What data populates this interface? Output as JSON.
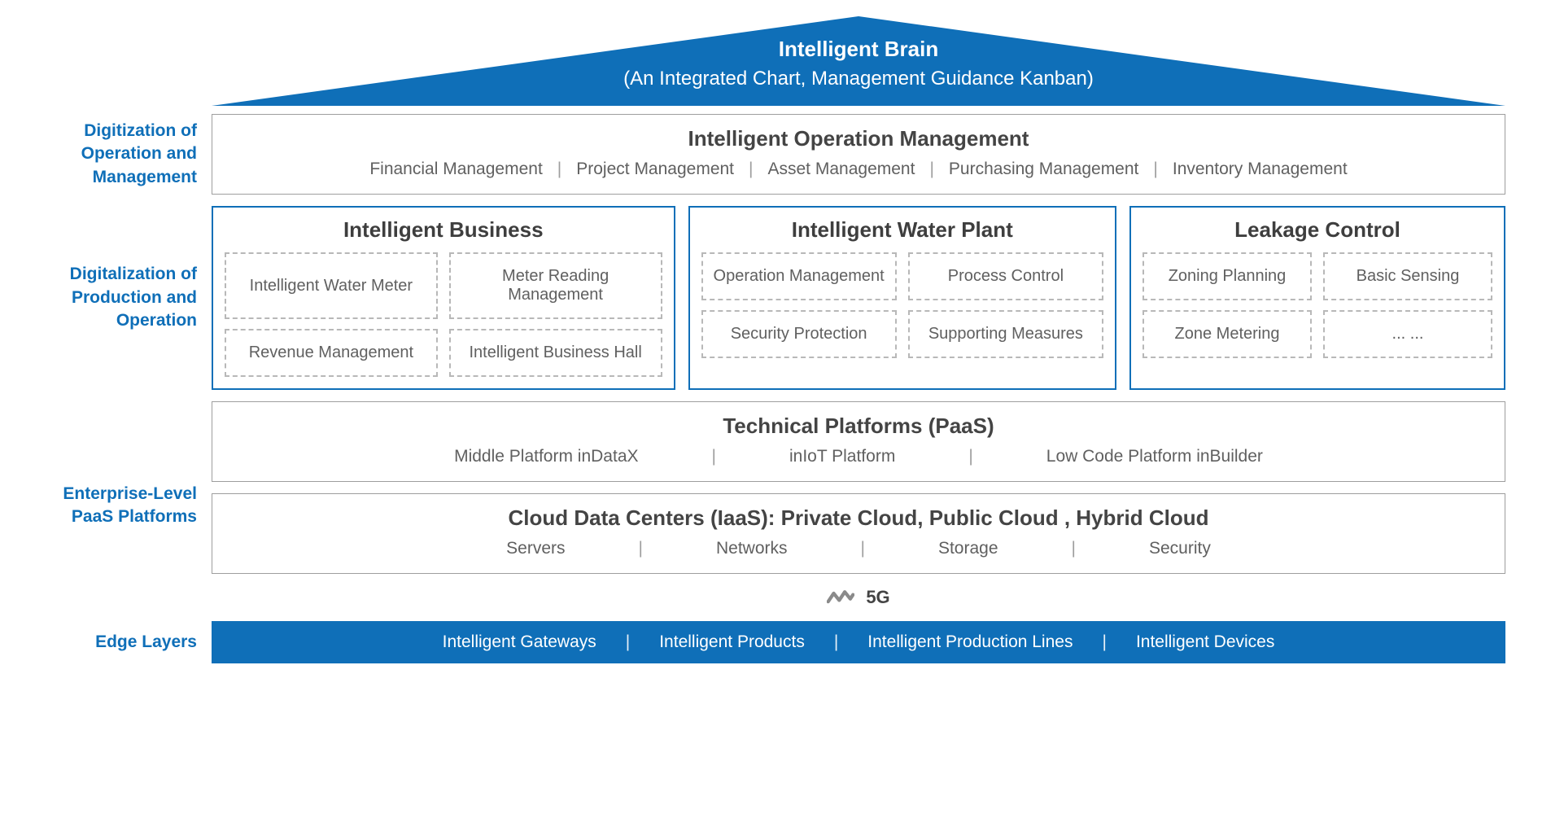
{
  "colors": {
    "brand_blue": "#0f6fb8",
    "text_dark": "#444444",
    "text_muted": "#606060",
    "border_gray": "#9e9e9e",
    "border_dash": "#b8b8b8",
    "background": "#ffffff",
    "fiveg_icon": "#8a8a8a"
  },
  "roof": {
    "title": "Intelligent Brain",
    "subtitle": "(An Integrated Chart, Management Guidance Kanban)"
  },
  "layers": [
    {
      "side_label": "Digitization of Operation and Management",
      "side_color": "#0f6fb8",
      "panels": [
        {
          "style": "gray",
          "title": "Intelligent Operation Management",
          "items": [
            "Financial Management",
            "Project Management",
            "Asset Management",
            "Purchasing Management",
            "Inventory Management"
          ]
        }
      ]
    },
    {
      "side_label": "Digitalization of Production and Operation",
      "side_color": "#0f6fb8",
      "columns": [
        {
          "flex": 1.25,
          "title": "Intelligent Business",
          "cells": [
            "Intelligent Water Meter",
            "Meter Reading Management",
            "Revenue Management",
            "Intelligent Business Hall"
          ]
        },
        {
          "flex": 1.15,
          "title": "Intelligent Water Plant",
          "cells": [
            "Operation Management",
            "Process Control",
            "Security Protection",
            "Supporting Measures"
          ]
        },
        {
          "flex": 1.0,
          "title": "Leakage Control",
          "cells": [
            "Zoning Planning",
            "Basic Sensing",
            "Zone Metering",
            "... ..."
          ]
        }
      ]
    },
    {
      "side_label": "Enterprise-Level PaaS Platforms",
      "side_color": "#0f6fb8",
      "panels": [
        {
          "style": "gray",
          "title": "Technical Platforms (PaaS)",
          "items": [
            "Middle Platform inDataX",
            "inIoT Platform",
            "Low Code Platform inBuilder"
          ]
        },
        {
          "style": "gray",
          "title": "Cloud Data Centers (IaaS): Private Cloud, Public Cloud , Hybrid Cloud",
          "items": [
            "Servers",
            "Networks",
            "Storage",
            "Security"
          ]
        }
      ],
      "fiveg_label": "5G"
    },
    {
      "side_label": "Edge Layers",
      "side_color": "#0f6fb8",
      "edge_items": [
        "Intelligent Gateways",
        "Intelligent Products",
        "Intelligent Production Lines",
        "Intelligent Devices"
      ]
    }
  ]
}
